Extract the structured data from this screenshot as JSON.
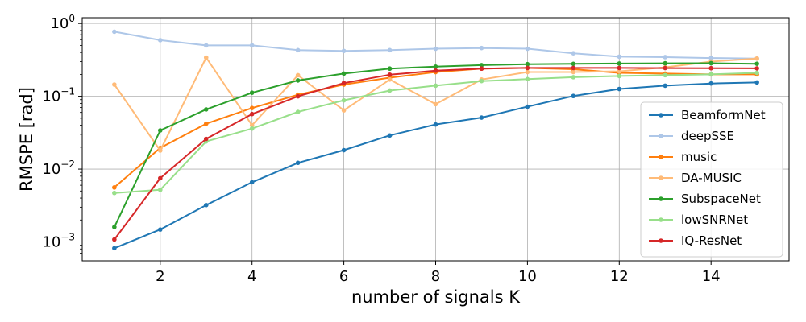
{
  "chart_data": {
    "type": "line",
    "xlabel": "number of signals K",
    "ylabel": "RMSPE [rad]",
    "yscale": "log",
    "xlim": [
      0.3,
      15.7
    ],
    "ylim": [
      0.00055,
      1.2
    ],
    "x_ticks": [
      2,
      4,
      6,
      8,
      10,
      12,
      14
    ],
    "y_ticks": [
      {
        "value": 0.001,
        "base": "10",
        "exp": "−3"
      },
      {
        "value": 0.01,
        "base": "10",
        "exp": "−2"
      },
      {
        "value": 0.1,
        "base": "10",
        "exp": "−1"
      },
      {
        "value": 1,
        "base": "10",
        "exp": "0"
      }
    ],
    "grid": true,
    "legend_position": "right",
    "x": [
      1,
      2,
      3,
      4,
      5,
      6,
      7,
      8,
      9,
      10,
      11,
      12,
      13,
      14,
      15
    ],
    "series": [
      {
        "name": "BeamformNet",
        "color": "#1f77b4",
        "values": [
          0.00082,
          0.00148,
          0.0032,
          0.0066,
          0.0122,
          0.0182,
          0.029,
          0.041,
          0.051,
          0.072,
          0.101,
          0.126,
          0.14,
          0.15,
          0.155
        ]
      },
      {
        "name": "deepSSE",
        "color": "#aec7e8",
        "values": [
          0.77,
          0.59,
          0.5,
          0.5,
          0.43,
          0.42,
          0.43,
          0.45,
          0.46,
          0.45,
          0.39,
          0.35,
          0.345,
          0.335,
          0.33
        ]
      },
      {
        "name": "music",
        "color": "#ff7f0e",
        "values": [
          0.0056,
          0.0195,
          0.042,
          0.069,
          0.105,
          0.145,
          0.18,
          0.215,
          0.24,
          0.245,
          0.235,
          0.21,
          0.205,
          0.2,
          0.2
        ]
      },
      {
        "name": "DA-MUSIC",
        "color": "#ffbb78",
        "values": [
          0.145,
          0.018,
          0.34,
          0.04,
          0.195,
          0.064,
          0.17,
          0.078,
          0.17,
          0.215,
          0.215,
          0.22,
          0.25,
          0.3,
          0.33
        ]
      },
      {
        "name": "SubspaceNet",
        "color": "#2ca02c",
        "values": [
          0.0016,
          0.034,
          0.066,
          0.112,
          0.165,
          0.205,
          0.24,
          0.255,
          0.268,
          0.276,
          0.279,
          0.282,
          0.284,
          0.285,
          0.28
        ]
      },
      {
        "name": "lowSNRNet",
        "color": "#98df8a",
        "values": [
          0.0047,
          0.0052,
          0.024,
          0.036,
          0.061,
          0.088,
          0.12,
          0.14,
          0.162,
          0.172,
          0.183,
          0.19,
          0.195,
          0.2,
          0.21
        ]
      },
      {
        "name": "IQ-ResNet",
        "color": "#d62728",
        "values": [
          0.00108,
          0.0075,
          0.026,
          0.057,
          0.1,
          0.152,
          0.198,
          0.225,
          0.24,
          0.245,
          0.245,
          0.245,
          0.244,
          0.243,
          0.242
        ]
      }
    ]
  }
}
